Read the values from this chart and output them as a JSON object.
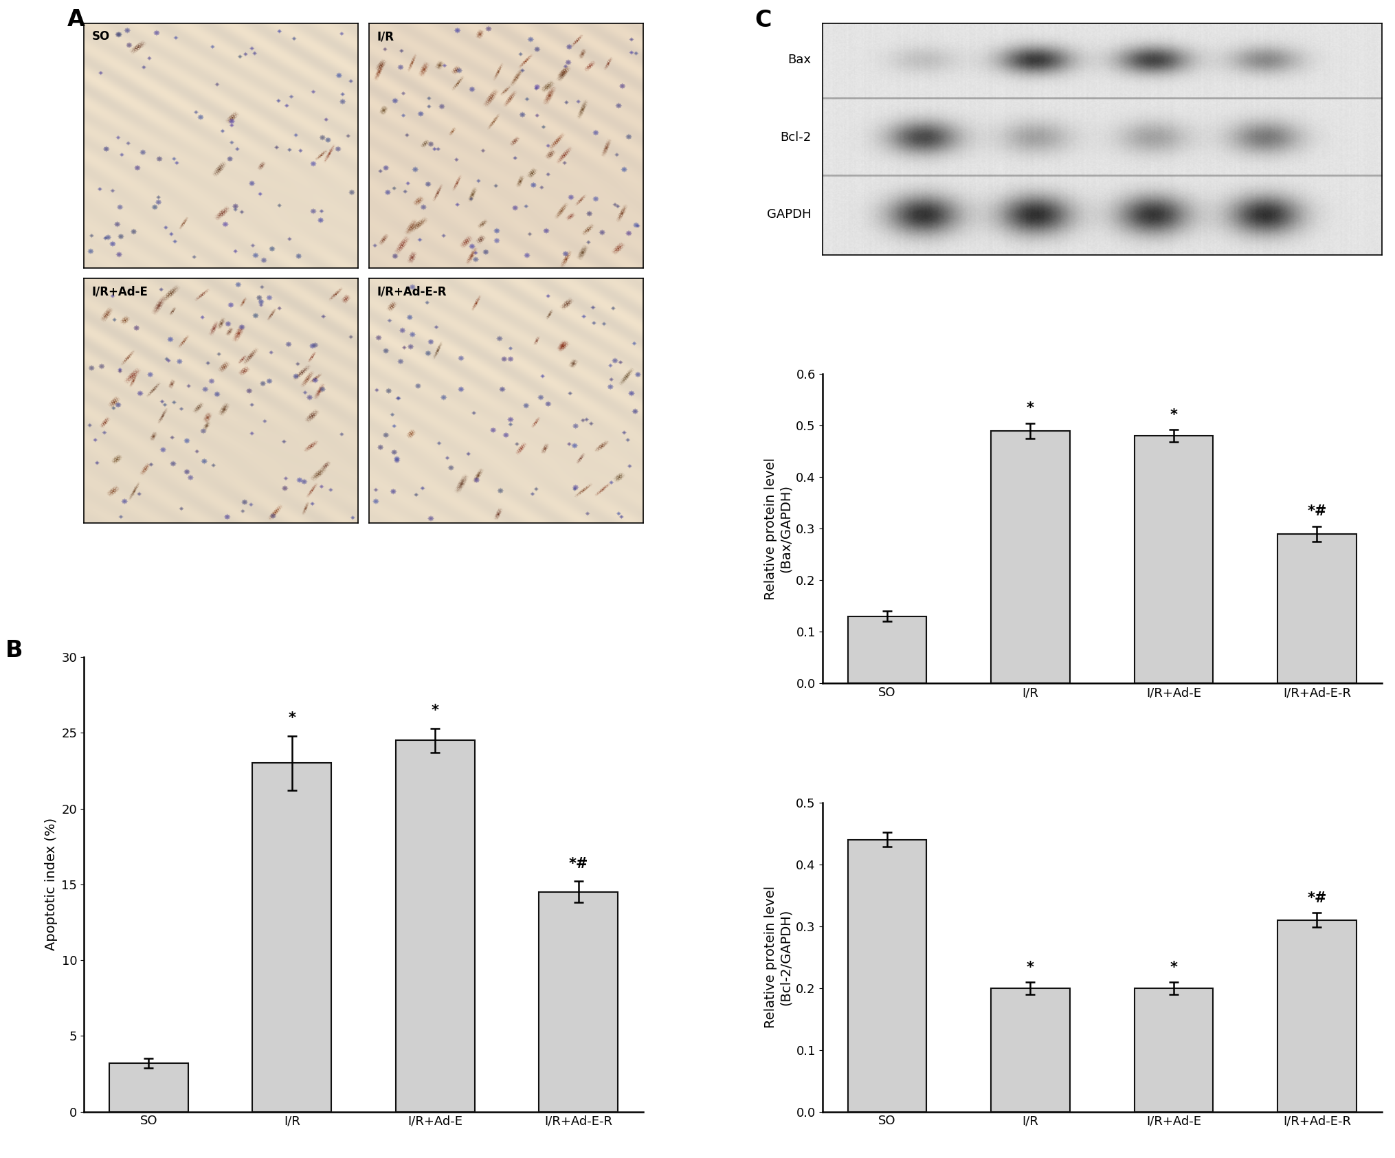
{
  "panel_B": {
    "categories": [
      "SO",
      "I/R",
      "I/R+Ad-E",
      "I/R+Ad-E-R"
    ],
    "values": [
      3.2,
      23.0,
      24.5,
      14.5
    ],
    "errors": [
      0.3,
      1.8,
      0.8,
      0.7
    ],
    "ylabel": "Apoptotic index (%)",
    "ylim": [
      0,
      30
    ],
    "yticks": [
      0,
      5,
      10,
      15,
      20,
      25,
      30
    ],
    "annotations": [
      "",
      "*",
      "*",
      "*#"
    ],
    "bar_color": "#d0d0d0",
    "bar_edgecolor": "#111111"
  },
  "panel_C_bax": {
    "categories": [
      "SO",
      "I/R",
      "I/R+Ad-E",
      "I/R+Ad-E-R"
    ],
    "values": [
      0.13,
      0.49,
      0.48,
      0.29
    ],
    "errors": [
      0.01,
      0.015,
      0.012,
      0.015
    ],
    "ylabel": "Relative protein level\n(Bax/GAPDH)",
    "ylim": [
      0,
      0.6
    ],
    "yticks": [
      0.0,
      0.1,
      0.2,
      0.3,
      0.4,
      0.5,
      0.6
    ],
    "annotations": [
      "",
      "*",
      "*",
      "*#"
    ],
    "bar_color": "#d0d0d0",
    "bar_edgecolor": "#111111"
  },
  "panel_C_bcl2": {
    "categories": [
      "SO",
      "I/R",
      "I/R+Ad-E",
      "I/R+Ad-E-R"
    ],
    "values": [
      0.44,
      0.2,
      0.2,
      0.31
    ],
    "errors": [
      0.012,
      0.01,
      0.01,
      0.012
    ],
    "ylabel": "Relative protein level\n(Bcl-2/GAPDH)",
    "ylim": [
      0,
      0.5
    ],
    "yticks": [
      0.0,
      0.1,
      0.2,
      0.3,
      0.4,
      0.5
    ],
    "annotations": [
      "",
      "*",
      "*",
      "*#"
    ],
    "bar_color": "#d0d0d0",
    "bar_edgecolor": "#111111"
  },
  "ihc_labels": [
    "SO",
    "I/R",
    "I/R+Ad-E",
    "I/R+Ad-E-R"
  ],
  "wb_labels": [
    "Bax",
    "Bcl-2",
    "GAPDH"
  ],
  "panel_labels_fontsize": 24,
  "axis_label_fontsize": 14,
  "tick_fontsize": 13,
  "annotation_fontsize": 15,
  "bar_width": 0.55,
  "figure_bg": "#ffffff"
}
